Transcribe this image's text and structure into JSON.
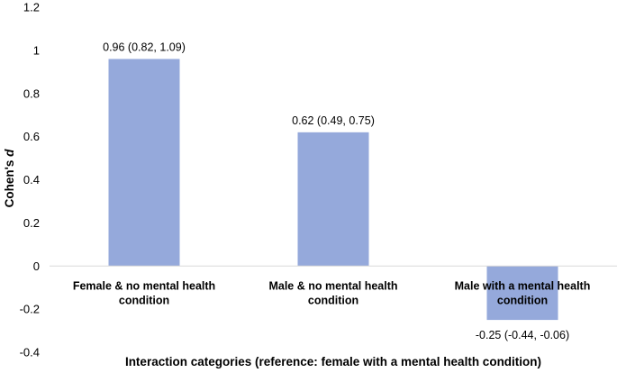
{
  "chart_data": {
    "type": "bar",
    "categories": [
      [
        "Female & no mental health",
        "condition"
      ],
      [
        "Male & no mental health",
        "condition"
      ],
      [
        "Male with a mental health",
        "condition"
      ]
    ],
    "values": [
      0.96,
      0.62,
      -0.25
    ],
    "data_labels": [
      "0.96 (0.82, 1.09)",
      "0.62 (0.49, 0.75)",
      "-0.25 (-0.44, -0.06)"
    ],
    "ylim": [
      -0.4,
      1.2
    ],
    "yticks": [
      -0.4,
      -0.2,
      0,
      0.2,
      0.4,
      0.6,
      0.8,
      1,
      1.2
    ],
    "ytick_labels": [
      "-0.4",
      "-0.2",
      "0",
      "0.2",
      "0.4",
      "0.6",
      "0.8",
      "1",
      "1.2"
    ],
    "ylabel_main": "Cohen's ",
    "ylabel_italic": "d",
    "xlabel": "Interaction categories (reference: female with a mental health condition)",
    "bar_color": "#95a9db",
    "grid": false
  }
}
